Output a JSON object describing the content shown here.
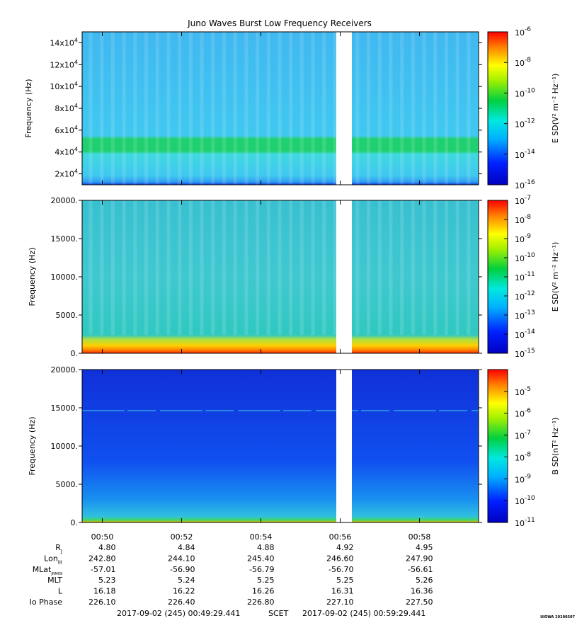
{
  "chart_data": {
    "type": "heatmap",
    "title": "Juno Waves Burst Low Frequency Receivers",
    "time_axis": {
      "tick_labels": [
        "00:50",
        "00:52",
        "00:54",
        "00:56",
        "00:58"
      ],
      "start": "2017-09-02 00:49:29.441",
      "end": "2017-09-02 00:59:29.441",
      "data_gap": [
        "00:56:00",
        "00:56:20"
      ]
    },
    "panels": [
      {
        "ylabel": "Frequency (Hz)",
        "ylim": [
          10000,
          150000
        ],
        "y_ticks": [
          20000,
          40000,
          60000,
          80000,
          100000,
          120000,
          140000
        ],
        "colorbar_label": "E SD(V² m⁻² Hz⁻¹)",
        "colorbar_range": [
          "10-16",
          "10-6"
        ],
        "colorbar_ticks": [
          "-16",
          "-14",
          "-12",
          "-10",
          "-8",
          "-6"
        ],
        "features": [
          {
            "band_hz": [
              40000,
              50000
            ],
            "level": "10-12"
          },
          {
            "band_hz": [
              10000,
              150000
            ],
            "level": "10-14"
          }
        ]
      },
      {
        "ylabel": "Frequency (Hz)",
        "ylim": [
          0,
          20000
        ],
        "y_ticks": [
          0,
          5000,
          10000,
          15000,
          20000
        ],
        "colorbar_label": "E SD(V² m⁻² Hz⁻¹)",
        "colorbar_range": [
          "10-15",
          "10-7"
        ],
        "colorbar_ticks": [
          "-15",
          "-14",
          "-13",
          "-12",
          "-11",
          "-10",
          "-9",
          "-8",
          "-7"
        ],
        "features": [
          {
            "band_hz": [
              0,
              500
            ],
            "level": "10-7"
          },
          {
            "band_hz": [
              500,
              2500
            ],
            "level": "10-10"
          },
          {
            "band_hz": [
              2500,
              20000
            ],
            "level": "10-12"
          }
        ]
      },
      {
        "ylabel": "Frequency (Hz)",
        "ylim": [
          0,
          20000
        ],
        "y_ticks": [
          0,
          5000,
          10000,
          15000,
          20000
        ],
        "colorbar_label": "B SD(nT² Hz⁻¹)",
        "colorbar_range": [
          "10-11",
          "10-4"
        ],
        "colorbar_ticks": [
          "-11",
          "-10",
          "-9",
          "-8",
          "-7",
          "-6",
          "-5"
        ],
        "features": [
          {
            "band_hz": [
              0,
              500
            ],
            "level": "10-7"
          },
          {
            "band_hz": [
              500,
              8000
            ],
            "level": "10-9"
          },
          {
            "band_hz": [
              8000,
              20000
            ],
            "level": "10-10"
          }
        ]
      }
    ],
    "ephemeris": {
      "rows": [
        {
          "label": "R",
          "sub": "J",
          "values": [
            "4.80",
            "4.84",
            "4.88",
            "4.92",
            "4.95"
          ]
        },
        {
          "label": "Lon",
          "sub": "III",
          "values": [
            "242.80",
            "244.10",
            "245.40",
            "246.60",
            "247.90"
          ]
        },
        {
          "label": "MLat",
          "sub": "JRM09",
          "values": [
            "-57.01",
            "-56.90",
            "-56.79",
            "-56.70",
            "-56.61"
          ]
        },
        {
          "label": "MLT",
          "sub": "",
          "values": [
            "5.23",
            "5.24",
            "5.25",
            "5.25",
            "5.26"
          ]
        },
        {
          "label": "L",
          "sub": "",
          "values": [
            "16.18",
            "16.22",
            "16.26",
            "16.31",
            "16.36"
          ]
        },
        {
          "label": "Io Phase",
          "sub": "",
          "values": [
            "226.10",
            "226.40",
            "226.80",
            "227.10",
            "227.50"
          ]
        }
      ]
    },
    "footer": {
      "start_text": "2017-09-02 (245) 00:49:29.441",
      "scet": "SCET",
      "end_text": "2017-09-02 (245) 00:59:29.441",
      "stamp": "UIOWA 20200307"
    }
  }
}
